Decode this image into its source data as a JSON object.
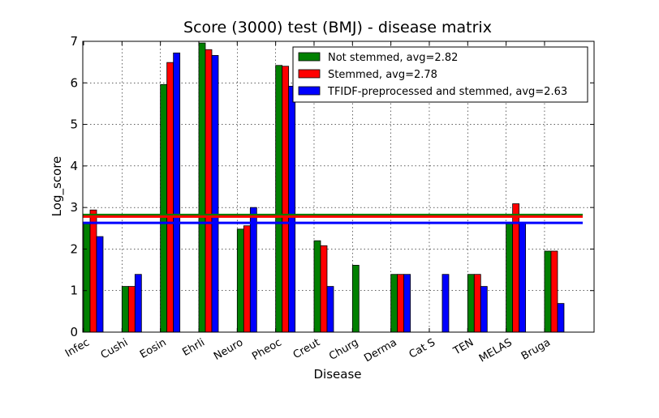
{
  "chart_data": {
    "type": "bar",
    "title": "Score (3000) test (BMJ) - disease matrix",
    "xlabel": "Disease",
    "ylabel": "Log_score",
    "ylim": [
      0,
      7
    ],
    "yticks": [
      "0",
      "1",
      "2",
      "3",
      "4",
      "5",
      "6",
      "7"
    ],
    "grid": true,
    "legend_position": "top-right",
    "categories": [
      "Infec",
      "Cushi",
      "Eosin",
      "Ehrli",
      "Neuro",
      "Pheoc",
      "Creut",
      "Churg",
      "Derma",
      "Cat S",
      "TEN",
      "MELAS",
      "Bruga"
    ],
    "series": [
      {
        "name": "Not stemmed, avg=2.82",
        "color": "#008000",
        "values": [
          2.64,
          1.1,
          5.96,
          6.96,
          2.48,
          6.42,
          2.2,
          1.61,
          1.39,
          0,
          1.39,
          2.64,
          1.95
        ],
        "avg": 2.82
      },
      {
        "name": "Stemmed, avg=2.78",
        "color": "#ff0000",
        "values": [
          2.94,
          1.1,
          6.49,
          6.8,
          2.56,
          6.4,
          2.08,
          0,
          1.39,
          0,
          1.39,
          3.09,
          1.95
        ],
        "avg": 2.78
      },
      {
        "name": "TFIDF-preprocessed and stemmed, avg=2.63",
        "color": "#0000ff",
        "values": [
          2.3,
          1.39,
          6.72,
          6.66,
          3.0,
          5.92,
          1.1,
          0,
          1.39,
          1.39,
          1.1,
          2.64,
          0.69
        ],
        "avg": 2.63
      }
    ]
  }
}
